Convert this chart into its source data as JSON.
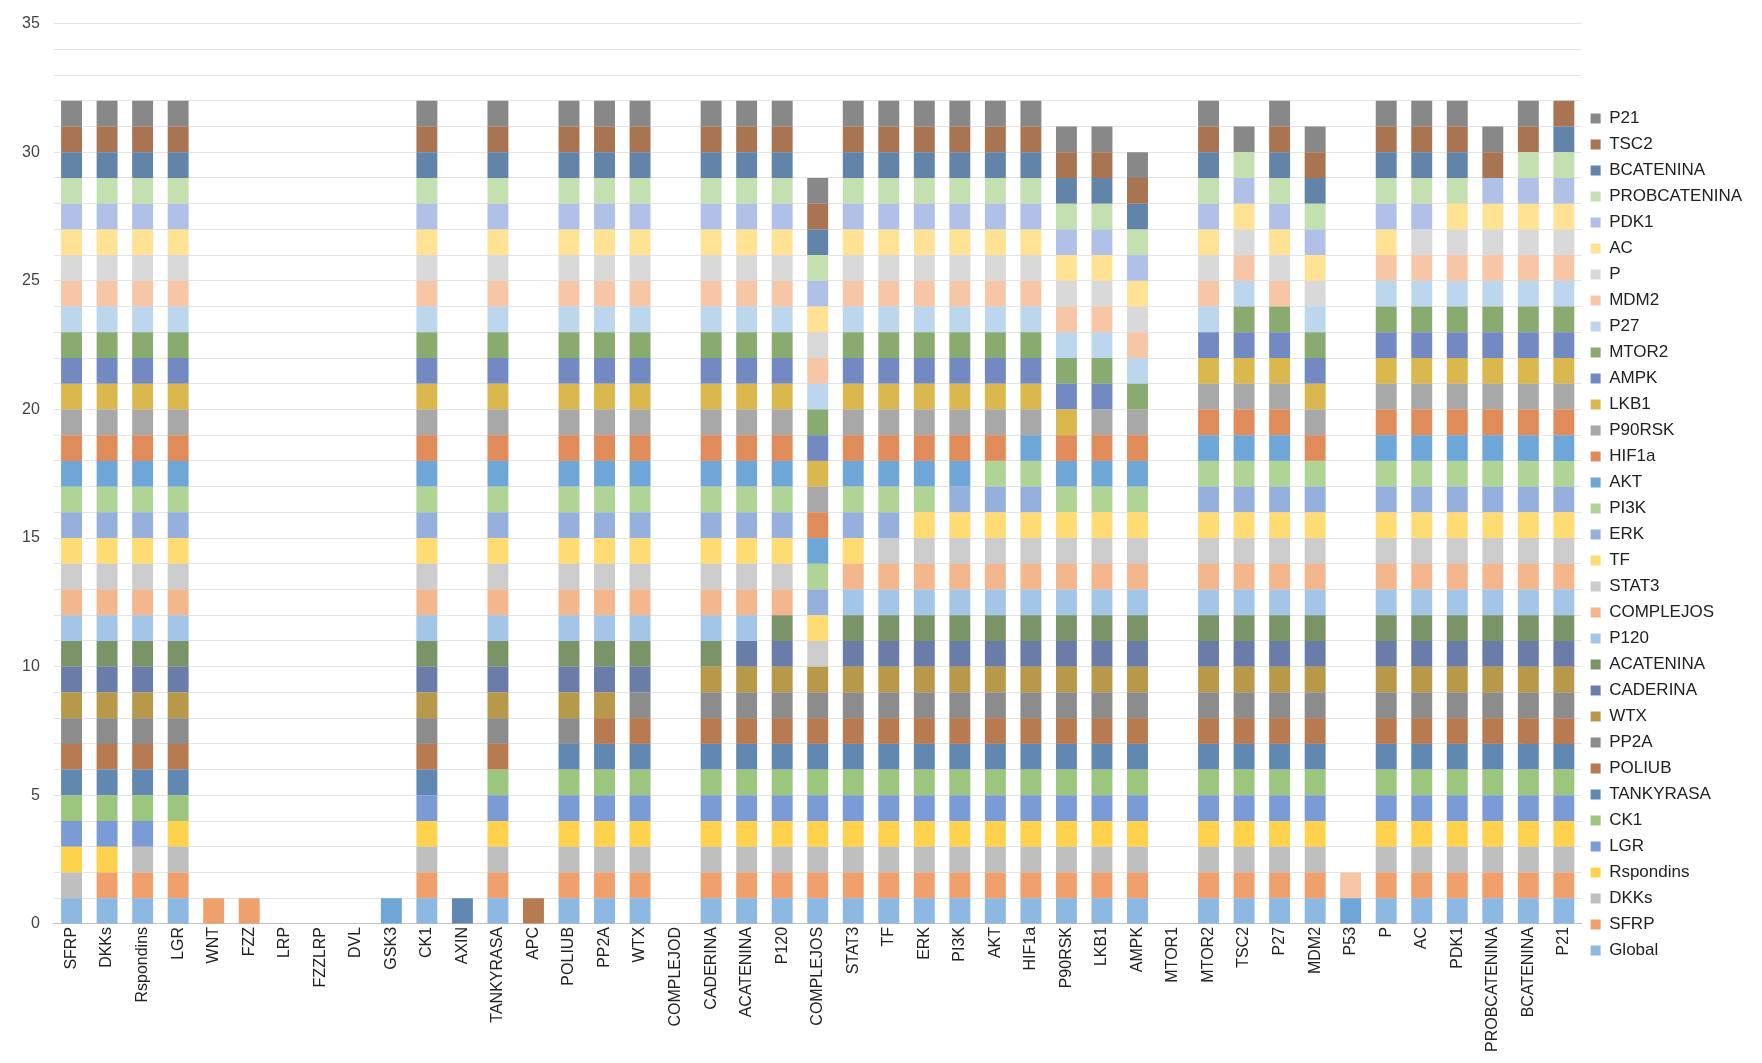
{
  "chart_data": {
    "type": "bar",
    "stacked": true,
    "legend": "right",
    "grid": "y",
    "categories": [
      "SFRP",
      "DKKs",
      "Rspondins",
      "LGR",
      "WNT",
      "FZZ",
      "LRP",
      "FZZLRP",
      "DVL",
      "GSK3",
      "CK1",
      "AXIN",
      "TANKYRASA",
      "APC",
      "POLIUB",
      "PP2A",
      "WTX",
      "COMPLEJOD",
      "CADERINA",
      "ACATENINA",
      "P120",
      "COMPLEJOS",
      "STAT3",
      "TF",
      "ERK",
      "PI3K",
      "AKT",
      "HIF1a",
      "P90RSK",
      "LKB1",
      "AMPK",
      "MTOR1",
      "MTOR2",
      "TSC2",
      "P27",
      "MDM2",
      "P53",
      "P",
      "AC",
      "PDK1",
      "PROBCATENINA",
      "BCATENINA",
      "P21"
    ],
    "ylim": [
      0,
      35
    ],
    "yticks": [
      0,
      {
        "value": 1,
        "label": null
      },
      {
        "value": 2,
        "label": null
      },
      {
        "value": 3,
        "label": null
      },
      {
        "value": 4,
        "label": null
      },
      5,
      {
        "value": 6,
        "label": null
      },
      {
        "value": 7,
        "label": null
      },
      {
        "value": 8,
        "label": null
      },
      {
        "value": 9,
        "label": null
      },
      10,
      {
        "value": 11,
        "label": null
      },
      {
        "value": 12,
        "label": null
      },
      {
        "value": 13,
        "label": null
      },
      {
        "value": 14,
        "label": null
      },
      15,
      {
        "value": 16,
        "label": null
      },
      {
        "value": 17,
        "label": null
      },
      {
        "value": 18,
        "label": null
      },
      {
        "value": 19,
        "label": null
      },
      20,
      {
        "value": 21,
        "label": null
      },
      {
        "value": 22,
        "label": null
      },
      {
        "value": 23,
        "label": null
      },
      {
        "value": 24,
        "label": null
      },
      25,
      {
        "value": 26,
        "label": null
      },
      {
        "value": 27,
        "label": null
      },
      {
        "value": 28,
        "label": null
      },
      {
        "value": 29,
        "label": null
      },
      30,
      {
        "value": 31,
        "label": null
      },
      {
        "value": 32,
        "label": null
      },
      {
        "value": 33,
        "label": null
      },
      {
        "value": 34,
        "label": null
      },
      35
    ],
    "series": [
      {
        "name": "Global",
        "color": "#8db8e2",
        "values": [
          1,
          1,
          1,
          1,
          0,
          0,
          0,
          0,
          0,
          0,
          1,
          0,
          1,
          0,
          1,
          1,
          1,
          0,
          1,
          1,
          1,
          1,
          1,
          1,
          1,
          1,
          1,
          1,
          1,
          1,
          1,
          0,
          1,
          1,
          1,
          1,
          0,
          1,
          1,
          1,
          1,
          1,
          1
        ]
      },
      {
        "name": "SFRP",
        "color": "#f0a06c",
        "values": [
          0,
          1,
          1,
          1,
          1,
          1,
          0,
          0,
          0,
          0,
          1,
          0,
          1,
          0,
          1,
          1,
          1,
          0,
          1,
          1,
          1,
          1,
          1,
          1,
          1,
          1,
          1,
          1,
          1,
          1,
          1,
          0,
          1,
          1,
          1,
          1,
          0,
          1,
          1,
          1,
          1,
          1,
          1
        ]
      },
      {
        "name": "DKKs",
        "color": "#bfbfbf",
        "values": [
          1,
          0,
          1,
          1,
          0,
          0,
          0,
          0,
          0,
          0,
          1,
          0,
          1,
          0,
          1,
          1,
          1,
          0,
          1,
          1,
          1,
          1,
          1,
          1,
          1,
          1,
          1,
          1,
          1,
          1,
          1,
          0,
          1,
          1,
          1,
          1,
          0,
          1,
          1,
          1,
          1,
          1,
          1
        ]
      },
      {
        "name": "Rspondins",
        "color": "#ffd24d",
        "values": [
          1,
          1,
          0,
          1,
          0,
          0,
          0,
          0,
          0,
          0,
          1,
          0,
          1,
          0,
          1,
          1,
          1,
          0,
          1,
          1,
          1,
          1,
          1,
          1,
          1,
          1,
          1,
          1,
          1,
          1,
          1,
          0,
          1,
          1,
          1,
          1,
          0,
          1,
          1,
          1,
          1,
          1,
          1
        ]
      },
      {
        "name": "LGR",
        "color": "#7b9bd6",
        "values": [
          1,
          1,
          1,
          0,
          0,
          0,
          0,
          0,
          0,
          0,
          1,
          0,
          1,
          0,
          1,
          1,
          1,
          0,
          1,
          1,
          1,
          1,
          1,
          1,
          1,
          1,
          1,
          1,
          1,
          1,
          1,
          0,
          1,
          1,
          1,
          1,
          0,
          1,
          1,
          1,
          1,
          1,
          1
        ]
      },
      {
        "name": "CK1",
        "color": "#9cc57e",
        "values": [
          1,
          1,
          1,
          1,
          0,
          0,
          0,
          0,
          0,
          0,
          0,
          0,
          1,
          0,
          1,
          1,
          1,
          0,
          1,
          1,
          1,
          1,
          1,
          1,
          1,
          1,
          1,
          1,
          1,
          1,
          1,
          0,
          1,
          1,
          1,
          1,
          0,
          1,
          1,
          1,
          1,
          1,
          1
        ]
      },
      {
        "name": "TANKYRASA",
        "color": "#6088b0",
        "values": [
          1,
          1,
          1,
          1,
          0,
          0,
          0,
          0,
          0,
          0,
          1,
          1,
          0,
          0,
          1,
          1,
          1,
          0,
          1,
          1,
          1,
          1,
          1,
          1,
          1,
          1,
          1,
          1,
          1,
          1,
          1,
          0,
          1,
          1,
          1,
          1,
          0,
          1,
          1,
          1,
          1,
          1,
          1
        ]
      },
      {
        "name": "POLIUB",
        "color": "#b87a50",
        "values": [
          1,
          1,
          1,
          1,
          0,
          0,
          0,
          0,
          0,
          0,
          1,
          0,
          1,
          1,
          0,
          1,
          1,
          0,
          1,
          1,
          1,
          1,
          1,
          1,
          1,
          1,
          1,
          1,
          1,
          1,
          1,
          0,
          1,
          1,
          1,
          1,
          0,
          1,
          1,
          1,
          1,
          1,
          1
        ]
      },
      {
        "name": "PP2A",
        "color": "#8c8c8c",
        "values": [
          1,
          1,
          1,
          1,
          0,
          0,
          0,
          0,
          0,
          0,
          1,
          0,
          1,
          0,
          1,
          0,
          1,
          0,
          1,
          1,
          1,
          1,
          1,
          1,
          1,
          1,
          1,
          1,
          1,
          1,
          1,
          0,
          1,
          1,
          1,
          1,
          0,
          1,
          1,
          1,
          1,
          1,
          1
        ]
      },
      {
        "name": "WTX",
        "color": "#b8994a",
        "values": [
          1,
          1,
          1,
          1,
          0,
          0,
          0,
          0,
          0,
          0,
          1,
          0,
          1,
          0,
          1,
          1,
          0,
          0,
          1,
          1,
          1,
          1,
          1,
          1,
          1,
          1,
          1,
          1,
          1,
          1,
          1,
          0,
          1,
          1,
          1,
          1,
          0,
          1,
          1,
          1,
          1,
          1,
          1
        ]
      },
      {
        "name": "CADERINA",
        "color": "#6a7ca8",
        "values": [
          1,
          1,
          1,
          1,
          0,
          0,
          0,
          0,
          0,
          0,
          1,
          0,
          1,
          0,
          1,
          1,
          1,
          0,
          0,
          1,
          1,
          0,
          1,
          1,
          1,
          1,
          1,
          1,
          1,
          1,
          1,
          0,
          1,
          1,
          1,
          1,
          0,
          1,
          1,
          1,
          1,
          1,
          1
        ]
      },
      {
        "name": "ACATENINA",
        "color": "#7a9468",
        "values": [
          1,
          1,
          1,
          1,
          0,
          0,
          0,
          0,
          0,
          0,
          1,
          0,
          1,
          0,
          1,
          1,
          1,
          0,
          1,
          0,
          1,
          0,
          1,
          1,
          1,
          1,
          1,
          1,
          1,
          1,
          1,
          0,
          1,
          1,
          1,
          1,
          0,
          1,
          1,
          1,
          1,
          1,
          1
        ]
      },
      {
        "name": "P120",
        "color": "#a3c6e8",
        "values": [
          1,
          1,
          1,
          1,
          0,
          0,
          0,
          0,
          0,
          0,
          1,
          0,
          1,
          0,
          1,
          1,
          1,
          0,
          1,
          1,
          0,
          0,
          1,
          1,
          1,
          1,
          1,
          1,
          1,
          1,
          1,
          0,
          1,
          1,
          1,
          1,
          0,
          1,
          1,
          1,
          1,
          1,
          1
        ]
      },
      {
        "name": "COMPLEJOS",
        "color": "#f4b68c",
        "values": [
          1,
          1,
          1,
          1,
          0,
          0,
          0,
          0,
          0,
          0,
          1,
          0,
          1,
          0,
          1,
          1,
          1,
          0,
          1,
          1,
          1,
          0,
          1,
          1,
          1,
          1,
          1,
          1,
          1,
          1,
          1,
          0,
          1,
          1,
          1,
          1,
          0,
          1,
          1,
          1,
          1,
          1,
          1
        ]
      },
      {
        "name": "STAT3",
        "color": "#cccccc",
        "values": [
          1,
          1,
          1,
          1,
          0,
          0,
          0,
          0,
          0,
          0,
          1,
          0,
          1,
          0,
          1,
          1,
          1,
          0,
          1,
          1,
          1,
          1,
          0,
          1,
          1,
          1,
          1,
          1,
          1,
          1,
          1,
          0,
          1,
          1,
          1,
          1,
          0,
          1,
          1,
          1,
          1,
          1,
          1
        ]
      },
      {
        "name": "TF",
        "color": "#ffdc73",
        "values": [
          1,
          1,
          1,
          1,
          0,
          0,
          0,
          0,
          0,
          0,
          1,
          0,
          1,
          0,
          1,
          1,
          1,
          0,
          1,
          1,
          1,
          1,
          1,
          0,
          1,
          1,
          1,
          1,
          1,
          1,
          1,
          0,
          1,
          1,
          1,
          1,
          0,
          1,
          1,
          1,
          1,
          1,
          1
        ]
      },
      {
        "name": "ERK",
        "color": "#96b0de",
        "values": [
          1,
          1,
          1,
          1,
          0,
          0,
          0,
          0,
          0,
          0,
          1,
          0,
          1,
          0,
          1,
          1,
          1,
          0,
          1,
          1,
          1,
          1,
          1,
          1,
          0,
          1,
          1,
          1,
          0,
          0,
          0,
          0,
          1,
          1,
          1,
          1,
          0,
          1,
          1,
          1,
          1,
          1,
          1
        ]
      },
      {
        "name": "PI3K",
        "color": "#b0d496",
        "values": [
          1,
          1,
          1,
          1,
          0,
          0,
          0,
          0,
          0,
          0,
          1,
          0,
          1,
          0,
          1,
          1,
          1,
          0,
          1,
          1,
          1,
          1,
          1,
          1,
          1,
          0,
          1,
          1,
          1,
          1,
          1,
          0,
          1,
          1,
          1,
          1,
          0,
          1,
          1,
          1,
          1,
          1,
          1
        ]
      },
      {
        "name": "AKT",
        "color": "#6fa6d8",
        "values": [
          1,
          1,
          1,
          1,
          0,
          0,
          0,
          0,
          0,
          1,
          1,
          0,
          1,
          0,
          1,
          1,
          1,
          0,
          1,
          1,
          1,
          1,
          1,
          1,
          1,
          1,
          0,
          1,
          1,
          1,
          1,
          0,
          1,
          1,
          1,
          0,
          1,
          1,
          1,
          1,
          1,
          1,
          1
        ]
      },
      {
        "name": "HIF1a",
        "color": "#e08c5a",
        "values": [
          1,
          1,
          1,
          1,
          0,
          0,
          0,
          0,
          0,
          0,
          1,
          0,
          1,
          0,
          1,
          1,
          1,
          0,
          1,
          1,
          1,
          1,
          1,
          1,
          1,
          1,
          1,
          0,
          1,
          1,
          1,
          0,
          1,
          1,
          1,
          1,
          0,
          1,
          1,
          1,
          1,
          1,
          1
        ]
      },
      {
        "name": "P90RSK",
        "color": "#a8a8a8",
        "values": [
          1,
          1,
          1,
          1,
          0,
          0,
          0,
          0,
          0,
          0,
          1,
          0,
          1,
          0,
          1,
          1,
          1,
          0,
          1,
          1,
          1,
          1,
          1,
          1,
          1,
          1,
          1,
          1,
          0,
          1,
          1,
          0,
          1,
          1,
          1,
          1,
          0,
          1,
          1,
          1,
          1,
          1,
          1
        ]
      },
      {
        "name": "LKB1",
        "color": "#dbb84e",
        "values": [
          1,
          1,
          1,
          1,
          0,
          0,
          0,
          0,
          0,
          0,
          1,
          0,
          1,
          0,
          1,
          1,
          1,
          0,
          1,
          1,
          1,
          1,
          1,
          1,
          1,
          1,
          1,
          1,
          1,
          0,
          0,
          0,
          1,
          1,
          1,
          1,
          0,
          1,
          1,
          1,
          1,
          1,
          1
        ]
      },
      {
        "name": "AMPK",
        "color": "#7289c2",
        "values": [
          1,
          1,
          1,
          1,
          0,
          0,
          0,
          0,
          0,
          0,
          1,
          0,
          1,
          0,
          1,
          1,
          1,
          0,
          1,
          1,
          1,
          1,
          1,
          1,
          1,
          1,
          1,
          1,
          1,
          1,
          0,
          0,
          1,
          1,
          1,
          1,
          0,
          1,
          1,
          1,
          1,
          1,
          1
        ]
      },
      {
        "name": "MTOR2",
        "color": "#8aab70",
        "values": [
          1,
          1,
          1,
          1,
          0,
          0,
          0,
          0,
          0,
          0,
          1,
          0,
          1,
          0,
          1,
          1,
          1,
          0,
          1,
          1,
          1,
          1,
          1,
          1,
          1,
          1,
          1,
          1,
          1,
          1,
          1,
          0,
          0,
          1,
          1,
          1,
          0,
          1,
          1,
          1,
          1,
          1,
          1
        ]
      },
      {
        "name": "P27",
        "color": "#bcd6ee",
        "values": [
          1,
          1,
          1,
          1,
          0,
          0,
          0,
          0,
          0,
          0,
          1,
          0,
          1,
          0,
          1,
          1,
          1,
          0,
          1,
          1,
          1,
          1,
          1,
          1,
          1,
          1,
          1,
          1,
          1,
          1,
          1,
          0,
          1,
          1,
          0,
          1,
          0,
          1,
          1,
          1,
          1,
          1,
          1
        ]
      },
      {
        "name": "MDM2",
        "color": "#f6c6a6",
        "values": [
          1,
          1,
          1,
          1,
          0,
          0,
          0,
          0,
          0,
          0,
          1,
          0,
          1,
          0,
          1,
          1,
          1,
          0,
          1,
          1,
          1,
          1,
          1,
          1,
          1,
          1,
          1,
          1,
          1,
          1,
          1,
          0,
          1,
          1,
          1,
          0,
          1,
          1,
          1,
          1,
          1,
          1,
          1
        ]
      },
      {
        "name": "P",
        "color": "#d9d9d9",
        "values": [
          1,
          1,
          1,
          1,
          0,
          0,
          0,
          0,
          0,
          0,
          1,
          0,
          1,
          0,
          1,
          1,
          1,
          0,
          1,
          1,
          1,
          1,
          1,
          1,
          1,
          1,
          1,
          1,
          1,
          1,
          1,
          0,
          1,
          1,
          1,
          1,
          0,
          0,
          1,
          1,
          1,
          1,
          1
        ]
      },
      {
        "name": "AC",
        "color": "#ffe294",
        "values": [
          1,
          1,
          1,
          1,
          0,
          0,
          0,
          0,
          0,
          0,
          1,
          0,
          1,
          0,
          1,
          1,
          1,
          0,
          1,
          1,
          1,
          1,
          1,
          1,
          1,
          1,
          1,
          1,
          1,
          1,
          1,
          0,
          1,
          1,
          1,
          1,
          0,
          1,
          0,
          1,
          1,
          1,
          1
        ]
      },
      {
        "name": "PDK1",
        "color": "#b0c0e6",
        "values": [
          1,
          1,
          1,
          1,
          0,
          0,
          0,
          0,
          0,
          0,
          1,
          0,
          1,
          0,
          1,
          1,
          1,
          0,
          1,
          1,
          1,
          1,
          1,
          1,
          1,
          1,
          1,
          1,
          1,
          1,
          1,
          0,
          1,
          1,
          1,
          1,
          0,
          1,
          1,
          0,
          1,
          1,
          1
        ]
      },
      {
        "name": "PROBCATENINA",
        "color": "#c4e0b0",
        "values": [
          1,
          1,
          1,
          1,
          0,
          0,
          0,
          0,
          0,
          0,
          1,
          0,
          1,
          0,
          1,
          1,
          1,
          0,
          1,
          1,
          1,
          1,
          1,
          1,
          1,
          1,
          1,
          1,
          1,
          1,
          1,
          0,
          1,
          1,
          1,
          1,
          0,
          1,
          1,
          1,
          0,
          1,
          1
        ]
      },
      {
        "name": "BCATENINA",
        "color": "#6284a8",
        "values": [
          1,
          1,
          1,
          1,
          0,
          0,
          0,
          0,
          0,
          0,
          1,
          0,
          1,
          0,
          1,
          1,
          1,
          0,
          1,
          1,
          1,
          1,
          1,
          1,
          1,
          1,
          1,
          1,
          1,
          1,
          1,
          0,
          1,
          0,
          1,
          1,
          0,
          1,
          1,
          1,
          0,
          0,
          1
        ]
      },
      {
        "name": "TSC2",
        "color": "#a87452",
        "values": [
          1,
          1,
          1,
          1,
          0,
          0,
          0,
          0,
          0,
          0,
          1,
          0,
          1,
          0,
          1,
          1,
          1,
          0,
          1,
          1,
          1,
          1,
          1,
          1,
          1,
          1,
          1,
          1,
          1,
          1,
          1,
          0,
          1,
          0,
          1,
          1,
          0,
          1,
          1,
          1,
          1,
          1,
          1
        ]
      },
      {
        "name": "P21",
        "color": "#888888",
        "values": [
          1,
          1,
          1,
          1,
          0,
          0,
          0,
          0,
          0,
          0,
          1,
          0,
          1,
          0,
          1,
          1,
          1,
          0,
          1,
          1,
          1,
          1,
          1,
          1,
          1,
          1,
          1,
          1,
          1,
          1,
          1,
          0,
          1,
          1,
          1,
          1,
          0,
          1,
          1,
          1,
          1,
          1,
          0
        ]
      }
    ]
  }
}
